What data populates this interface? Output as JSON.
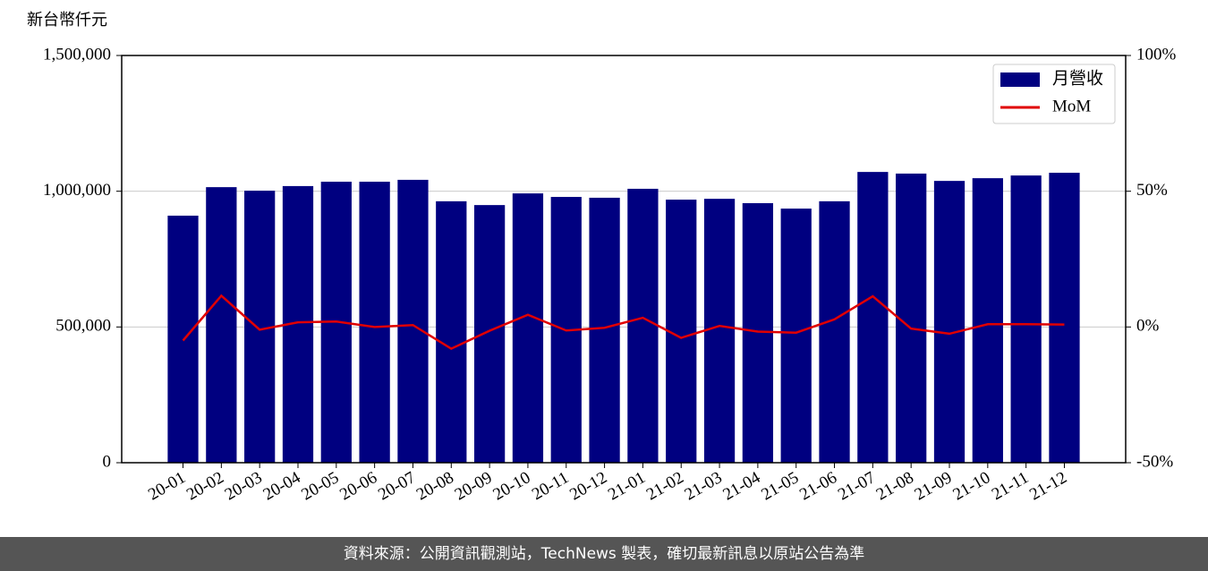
{
  "chart_data": {
    "type": "bar_line",
    "y_label": "新台幣仟元",
    "categories": [
      "20-01",
      "20-02",
      "20-03",
      "20-04",
      "20-05",
      "20-06",
      "20-07",
      "20-08",
      "20-09",
      "20-10",
      "20-11",
      "20-12",
      "21-01",
      "21-02",
      "21-03",
      "21-04",
      "21-05",
      "21-06",
      "21-07",
      "21-08",
      "21-09",
      "21-10",
      "21-11",
      "21-12"
    ],
    "series": [
      {
        "name": "月營收",
        "type": "bar",
        "color": "#000080",
        "values": [
          910000,
          1015000,
          1002000,
          1019000,
          1035000,
          1035000,
          1042000,
          963000,
          949000,
          992000,
          979000,
          976000,
          1009000,
          969000,
          972000,
          956000,
          936000,
          963000,
          1071000,
          1065000,
          1038000,
          1048000,
          1058000,
          1068000
        ]
      },
      {
        "name": "MoM",
        "type": "line",
        "axis": "y2",
        "color": "#e00000",
        "values": [
          -5,
          11.5,
          -1,
          1.7,
          2,
          0,
          0.7,
          -8,
          -1.4,
          4.5,
          -1.3,
          -0.3,
          3.4,
          -4,
          0.4,
          -1.7,
          -2.1,
          2.8,
          11.3,
          -0.6,
          -2.5,
          1,
          1,
          0.9
        ]
      }
    ],
    "ylim": [
      0,
      1500000
    ],
    "yticks": [
      {
        "value": 0,
        "label": "0"
      },
      {
        "value": 500000,
        "label": "500,000"
      },
      {
        "value": 1000000,
        "label": "1,000,000"
      },
      {
        "value": 1500000,
        "label": "1,500,000"
      }
    ],
    "y2lim": [
      -50,
      100
    ],
    "y2ticks": [
      {
        "value": -50,
        "label": "-50%"
      },
      {
        "value": 0,
        "label": "0%"
      },
      {
        "value": 50,
        "label": "50%"
      },
      {
        "value": 100,
        "label": "100%"
      }
    ],
    "grid": true,
    "legend": "upper right",
    "source": "資料來源：公開資訊觀測站，TechNews 製表，確切最新訊息以原站公告為準"
  }
}
